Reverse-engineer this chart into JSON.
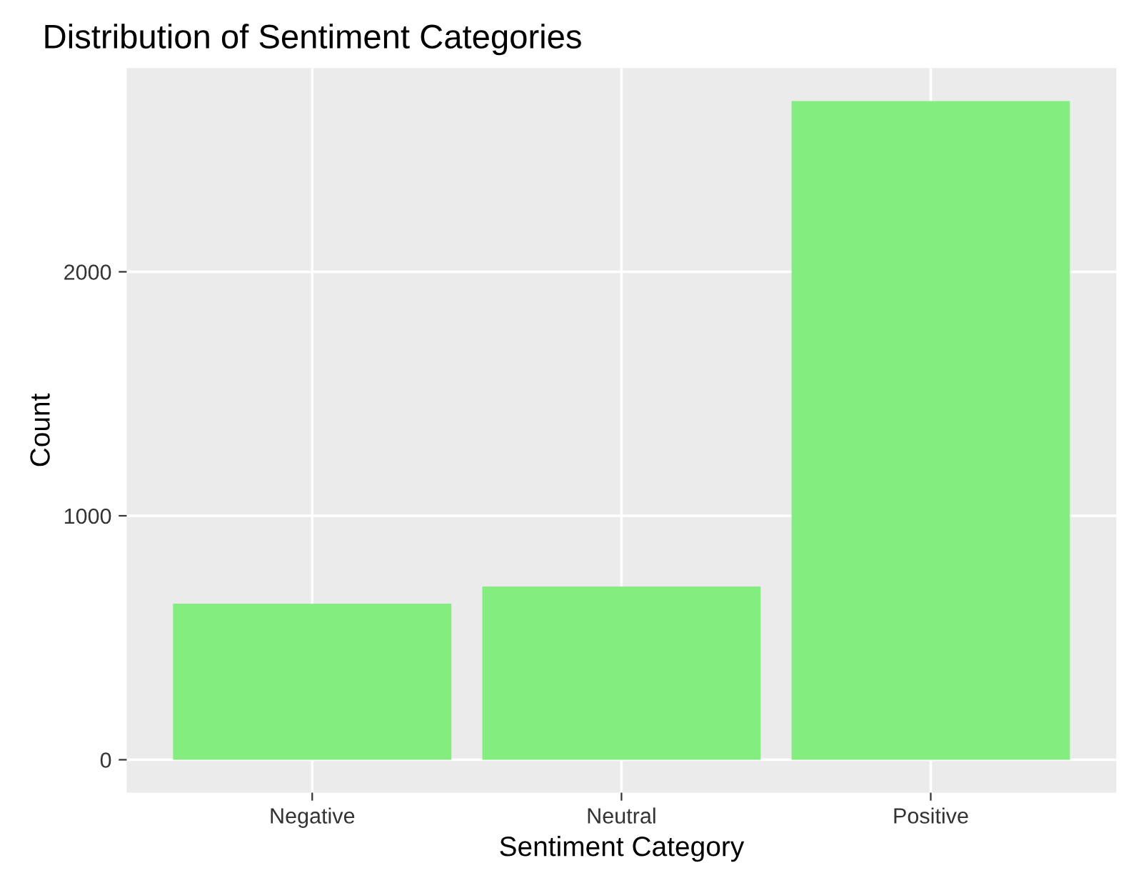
{
  "chart_data": {
    "type": "bar",
    "title": "Distribution of Sentiment Categories",
    "xlabel": "Sentiment Category",
    "ylabel": "Count",
    "categories": [
      "Negative",
      "Neutral",
      "Positive"
    ],
    "values": [
      640,
      710,
      2700
    ],
    "color": "#83ed80",
    "ylim": [
      -135,
      2835
    ],
    "yticks": [
      0,
      1000,
      2000
    ],
    "grid": true,
    "legend": false
  }
}
